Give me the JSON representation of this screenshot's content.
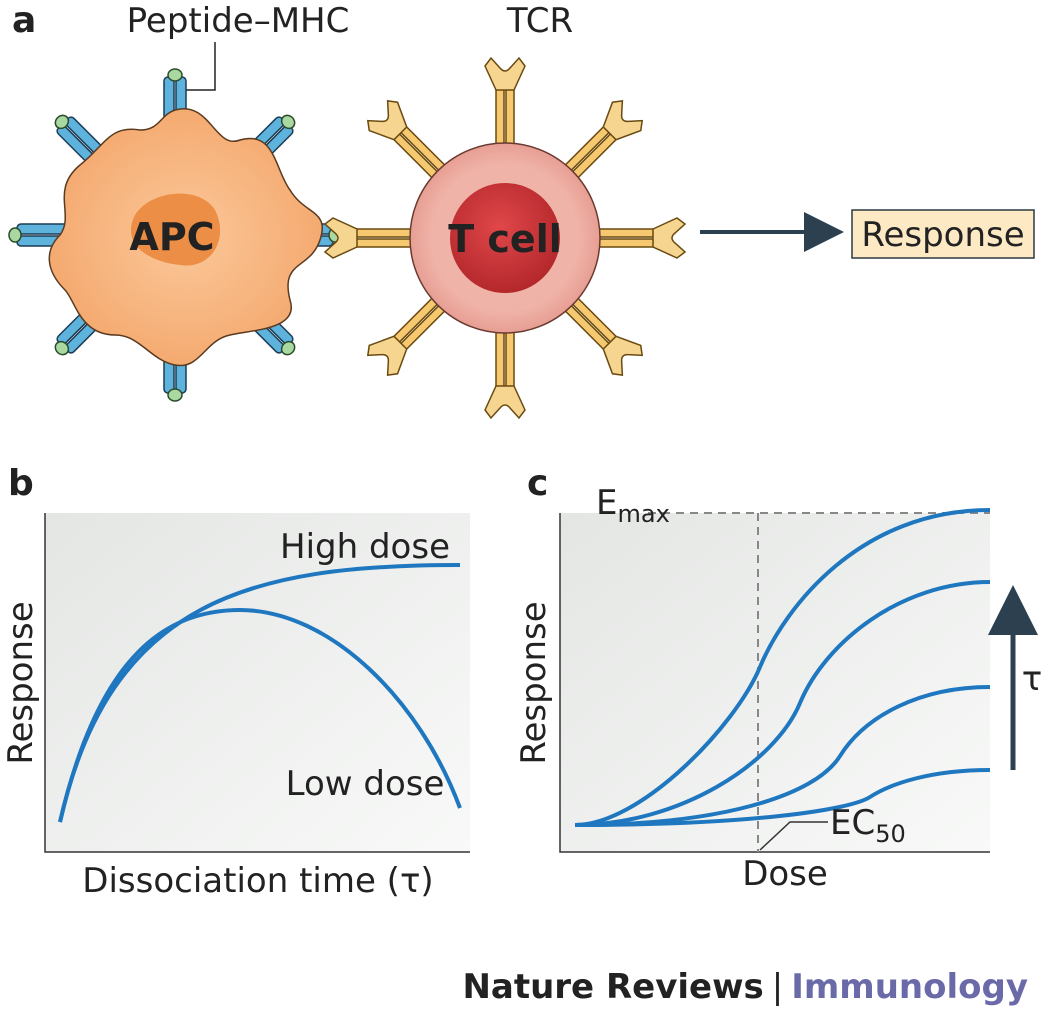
{
  "panels": {
    "a": {
      "label": "a",
      "peptide_mhc": "Peptide–MHC",
      "tcr": "TCR",
      "apc": "APC",
      "t_cell": "T cell",
      "response": "Response"
    },
    "b": {
      "label": "b",
      "y_label": "Response",
      "x_label": "Dissociation time (τ)",
      "high_dose": "High dose",
      "low_dose": "Low dose"
    },
    "c": {
      "label": "c",
      "emax": {
        "base": "E",
        "sub": "max"
      },
      "y_label": "Response",
      "x_label": "Dose",
      "tau": "τ",
      "ec50": {
        "base": "EC",
        "sub": "50"
      }
    }
  },
  "footer": {
    "journal": "Nature Reviews",
    "separator": "|",
    "subject": "Immunology"
  }
}
